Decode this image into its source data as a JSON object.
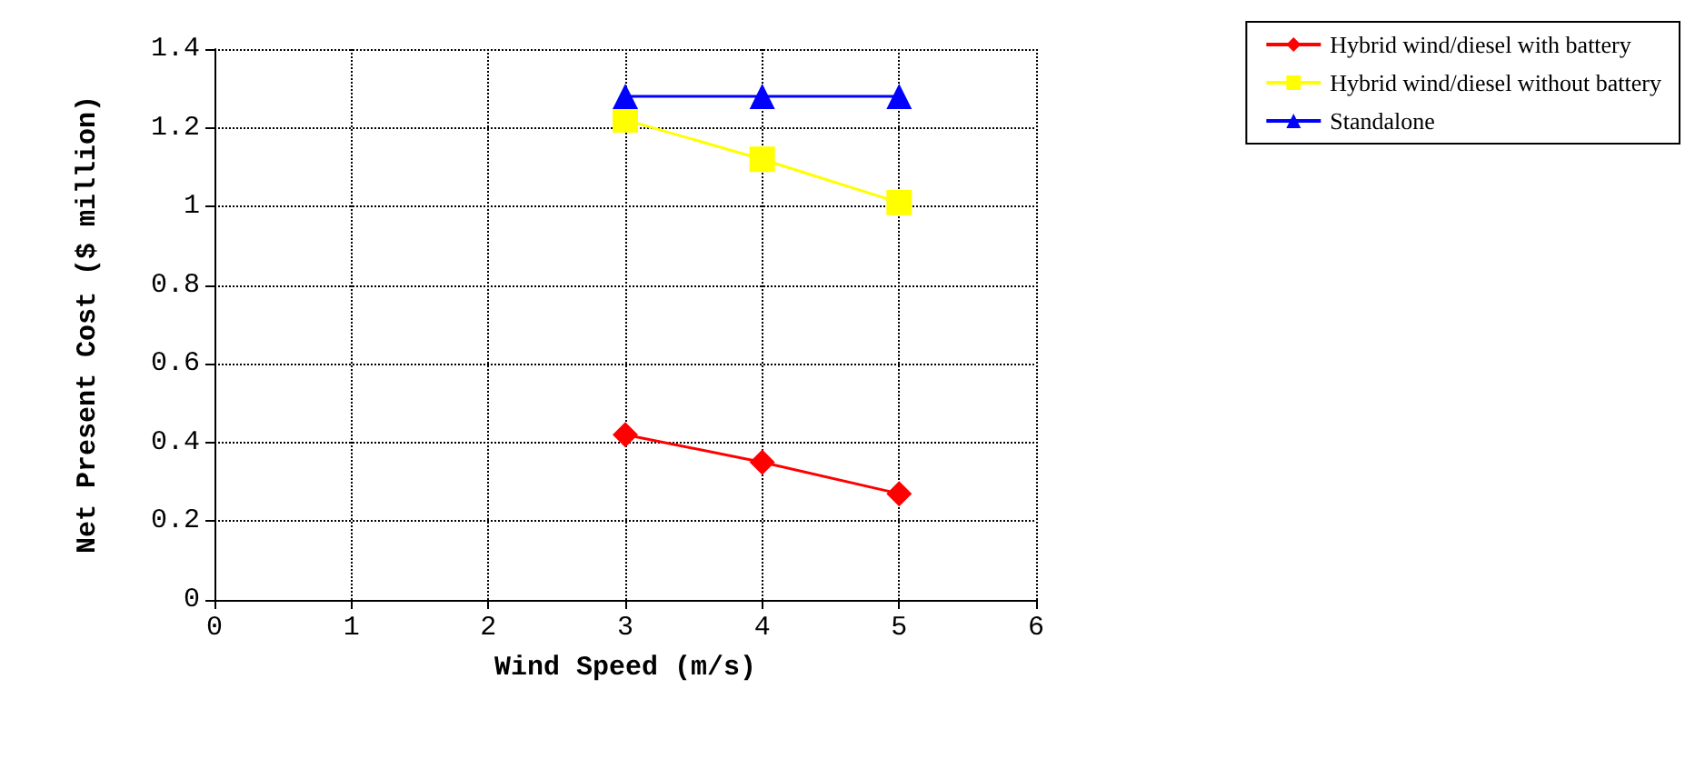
{
  "chart_data": {
    "type": "line",
    "xlabel": "Wind Speed (m/s)",
    "ylabel": "Net Present Cost ($ million)",
    "x": [
      3,
      4,
      5
    ],
    "series": [
      {
        "name": "Hybrid wind/diesel with battery",
        "color": "#ff0000",
        "marker": "diamond",
        "values": [
          0.42,
          0.35,
          0.27
        ]
      },
      {
        "name": "Hybrid wind/diesel without battery",
        "color": "#ffff00",
        "marker": "square",
        "values": [
          1.22,
          1.12,
          1.01
        ]
      },
      {
        "name": "Standalone",
        "color": "#0000ff",
        "marker": "triangle",
        "values": [
          1.28,
          1.28,
          1.28
        ]
      }
    ],
    "xlim": [
      0,
      6
    ],
    "xticks": [
      0,
      1,
      2,
      3,
      4,
      5,
      6
    ],
    "ylim": [
      0,
      1.4
    ],
    "yticks": [
      0,
      0.2,
      0.4,
      0.6,
      0.8,
      1,
      1.2,
      1.4
    ],
    "grid": true,
    "legend": "top right"
  }
}
